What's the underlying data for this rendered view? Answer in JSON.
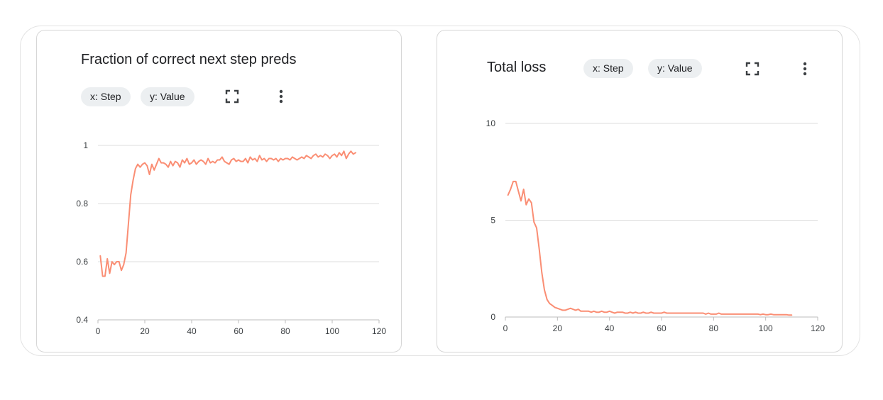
{
  "colors": {
    "series": "#fa8e74",
    "grid": "#dcdcdc",
    "axis": "#bdbdbd"
  },
  "cards": [
    {
      "title": "Fraction of correct next step preds",
      "x_chip": "x: Step",
      "y_chip": "y: Value",
      "fullscreen_icon": "fullscreen-icon",
      "menu_icon": "more-vert-icon"
    },
    {
      "title": "Total loss",
      "x_chip": "x: Step",
      "y_chip": "y: Value",
      "fullscreen_icon": "fullscreen-icon",
      "menu_icon": "more-vert-icon"
    }
  ],
  "chart_data": [
    {
      "type": "line",
      "title": "Fraction of correct next step preds",
      "xlabel": "Step",
      "ylabel": "Value",
      "xlim": [
        0,
        120
      ],
      "ylim": [
        0.4,
        1
      ],
      "xticks": [
        0,
        20,
        40,
        60,
        80,
        100,
        120
      ],
      "yticks": [
        0.4,
        0.6,
        0.8,
        1
      ],
      "ytick_labels": [
        "0.4",
        "0.6",
        "0.8",
        "1"
      ],
      "series": [
        {
          "name": "Value",
          "x": [
            1,
            2,
            3,
            4,
            5,
            6,
            7,
            8,
            9,
            10,
            11,
            12,
            13,
            14,
            15,
            16,
            17,
            18,
            19,
            20,
            21,
            22,
            23,
            24,
            25,
            26,
            27,
            28,
            29,
            30,
            31,
            32,
            33,
            34,
            35,
            36,
            37,
            38,
            39,
            40,
            41,
            42,
            43,
            44,
            45,
            46,
            47,
            48,
            49,
            50,
            51,
            52,
            53,
            54,
            55,
            56,
            57,
            58,
            59,
            60,
            61,
            62,
            63,
            64,
            65,
            66,
            67,
            68,
            69,
            70,
            71,
            72,
            73,
            74,
            75,
            76,
            77,
            78,
            79,
            80,
            81,
            82,
            83,
            84,
            85,
            86,
            87,
            88,
            89,
            90,
            91,
            92,
            93,
            94,
            95,
            96,
            97,
            98,
            99,
            100,
            101,
            102,
            103,
            104,
            105,
            106,
            107,
            108,
            109,
            110
          ],
          "y": [
            0.62,
            0.55,
            0.55,
            0.61,
            0.56,
            0.6,
            0.59,
            0.6,
            0.6,
            0.57,
            0.59,
            0.63,
            0.73,
            0.83,
            0.88,
            0.92,
            0.935,
            0.925,
            0.935,
            0.94,
            0.93,
            0.9,
            0.935,
            0.915,
            0.935,
            0.955,
            0.94,
            0.94,
            0.935,
            0.925,
            0.945,
            0.93,
            0.945,
            0.94,
            0.925,
            0.95,
            0.94,
            0.955,
            0.935,
            0.94,
            0.95,
            0.935,
            0.945,
            0.95,
            0.945,
            0.935,
            0.955,
            0.94,
            0.945,
            0.94,
            0.95,
            0.95,
            0.96,
            0.945,
            0.94,
            0.935,
            0.95,
            0.955,
            0.945,
            0.95,
            0.945,
            0.945,
            0.955,
            0.94,
            0.96,
            0.95,
            0.955,
            0.945,
            0.965,
            0.95,
            0.955,
            0.945,
            0.955,
            0.955,
            0.95,
            0.955,
            0.945,
            0.955,
            0.95,
            0.955,
            0.955,
            0.95,
            0.96,
            0.955,
            0.95,
            0.955,
            0.96,
            0.955,
            0.965,
            0.96,
            0.955,
            0.965,
            0.97,
            0.96,
            0.965,
            0.96,
            0.97,
            0.965,
            0.955,
            0.965,
            0.97,
            0.96,
            0.975,
            0.965,
            0.98,
            0.955,
            0.97,
            0.98,
            0.97,
            0.975
          ]
        }
      ]
    },
    {
      "type": "line",
      "title": "Total loss",
      "xlabel": "Step",
      "ylabel": "Value",
      "xlim": [
        0,
        120
      ],
      "ylim": [
        0,
        10
      ],
      "xticks": [
        0,
        20,
        40,
        60,
        80,
        100,
        120
      ],
      "yticks": [
        0,
        5,
        10
      ],
      "ytick_labels": [
        "0",
        "5",
        "10"
      ],
      "series": [
        {
          "name": "Value",
          "x": [
            1,
            2,
            3,
            4,
            5,
            6,
            7,
            8,
            9,
            10,
            11,
            12,
            13,
            14,
            15,
            16,
            17,
            18,
            19,
            20,
            21,
            22,
            23,
            24,
            25,
            26,
            27,
            28,
            29,
            30,
            31,
            32,
            33,
            34,
            35,
            36,
            37,
            38,
            39,
            40,
            41,
            42,
            43,
            44,
            45,
            46,
            47,
            48,
            49,
            50,
            51,
            52,
            53,
            54,
            55,
            56,
            57,
            58,
            59,
            60,
            61,
            62,
            63,
            64,
            65,
            66,
            67,
            68,
            69,
            70,
            71,
            72,
            73,
            74,
            75,
            76,
            77,
            78,
            79,
            80,
            81,
            82,
            83,
            84,
            85,
            86,
            87,
            88,
            89,
            90,
            91,
            92,
            93,
            94,
            95,
            96,
            97,
            98,
            99,
            100,
            101,
            102,
            103,
            104,
            105,
            106,
            107,
            108,
            109,
            110
          ],
          "y": [
            6.3,
            6.6,
            7.0,
            7.0,
            6.5,
            6.0,
            6.6,
            5.8,
            6.1,
            5.9,
            4.9,
            4.6,
            3.5,
            2.3,
            1.4,
            0.9,
            0.7,
            0.6,
            0.5,
            0.45,
            0.4,
            0.35,
            0.35,
            0.4,
            0.45,
            0.4,
            0.35,
            0.4,
            0.3,
            0.3,
            0.3,
            0.3,
            0.25,
            0.3,
            0.25,
            0.25,
            0.3,
            0.25,
            0.25,
            0.3,
            0.25,
            0.2,
            0.25,
            0.25,
            0.25,
            0.2,
            0.2,
            0.25,
            0.2,
            0.25,
            0.2,
            0.2,
            0.25,
            0.2,
            0.2,
            0.25,
            0.2,
            0.2,
            0.2,
            0.2,
            0.25,
            0.2,
            0.2,
            0.2,
            0.2,
            0.2,
            0.2,
            0.2,
            0.2,
            0.2,
            0.2,
            0.2,
            0.2,
            0.2,
            0.2,
            0.2,
            0.15,
            0.2,
            0.15,
            0.15,
            0.15,
            0.2,
            0.15,
            0.15,
            0.15,
            0.15,
            0.15,
            0.15,
            0.15,
            0.15,
            0.15,
            0.15,
            0.15,
            0.15,
            0.15,
            0.15,
            0.15,
            0.12,
            0.15,
            0.12,
            0.12,
            0.15,
            0.12,
            0.12,
            0.12,
            0.12,
            0.12,
            0.12,
            0.1,
            0.1
          ]
        }
      ]
    }
  ]
}
